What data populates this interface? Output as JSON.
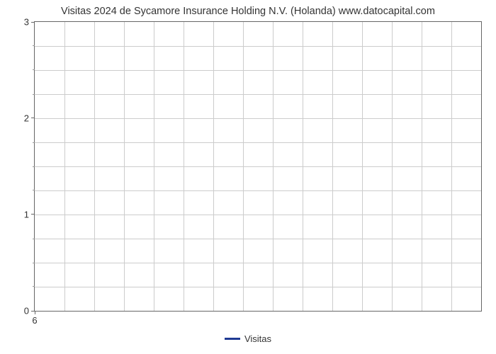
{
  "chart": {
    "type": "line",
    "title": "Visitas 2024 de Sycamore Insurance Holding N.V. (Holanda) www.datocapital.com",
    "title_fontsize": 14.5,
    "title_color": "#333333",
    "background_color": "#ffffff",
    "plot_border_color": "#666666",
    "grid_color": "#cccccc",
    "y": {
      "lim": [
        0,
        3
      ],
      "major_ticks": [
        0,
        1,
        2,
        3
      ],
      "minor_tick_step": 0.25,
      "tick_fontsize": 13,
      "tick_color": "#333333"
    },
    "x": {
      "major_ticks": [
        6
      ],
      "tick_fontsize": 13,
      "tick_color": "#333333",
      "vertical_gridlines": 14
    },
    "series": [
      {
        "name": "Visitas",
        "color": "#1f3a93",
        "values": []
      }
    ],
    "legend": {
      "position": "bottom-center",
      "fontsize": 13,
      "swatch_width": 22,
      "swatch_height": 3
    }
  }
}
